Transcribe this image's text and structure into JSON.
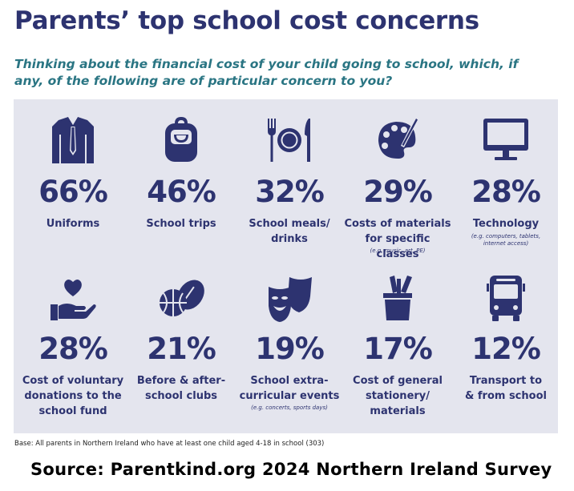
{
  "title": "Parents’ top school cost concerns",
  "question": "Thinking about the financial cost of your child going to school, which, if any, of the following are of particular concern to you?",
  "base": "Base: All parents in Northern Ireland who have at least one child aged 4-18 in school (303)",
  "source": "Source: Parentkind.org  2024 Northern Ireland Survey",
  "colors": {
    "primary": "#2d3370",
    "question": "#2a7583",
    "panel": "#e4e5ee"
  },
  "chart_data": {
    "type": "pictogram",
    "value_unit": "%",
    "items": [
      {
        "icon": "shirt-tie-icon",
        "value": 66,
        "pct": "66%",
        "label1": "Uniforms",
        "label2": "",
        "label3": "",
        "note1": "",
        "note2": ""
      },
      {
        "icon": "backpack-icon",
        "value": 46,
        "pct": "46%",
        "label1": "School trips",
        "label2": "",
        "label3": "",
        "note1": "",
        "note2": ""
      },
      {
        "icon": "plate-cutlery-icon",
        "value": 32,
        "pct": "32%",
        "label1": "School meals/",
        "label2": "drinks",
        "label3": "",
        "note1": "",
        "note2": ""
      },
      {
        "icon": "paint-palette-icon",
        "value": 29,
        "pct": "29%",
        "label1": "Costs of materials",
        "label2": "for specific classes",
        "label3": "",
        "note1": "(e.g. music, art, PE)",
        "note2": ""
      },
      {
        "icon": "computer-monitor-icon",
        "value": 28,
        "pct": "28%",
        "label1": "Technology",
        "label2": "",
        "label3": "",
        "note1": "(e.g. computers, tablets,",
        "note2": "internet access)"
      },
      {
        "icon": "heart-hand-icon",
        "value": 28,
        "pct": "28%",
        "label1": "Cost of voluntary",
        "label2": "donations to the",
        "label3": "school fund",
        "note1": "",
        "note2": ""
      },
      {
        "icon": "sports-balls-icon",
        "value": 21,
        "pct": "21%",
        "label1": "Before & after-",
        "label2": "school clubs",
        "label3": "",
        "note1": "",
        "note2": ""
      },
      {
        "icon": "theatre-masks-icon",
        "value": 19,
        "pct": "19%",
        "label1": "School extra-",
        "label2": "curricular events",
        "label3": "",
        "note1": "(e.g. concerts, sports days)",
        "note2": ""
      },
      {
        "icon": "pencil-cup-icon",
        "value": 17,
        "pct": "17%",
        "label1": "Cost of general",
        "label2": "stationery/",
        "label3": "materials",
        "note1": "",
        "note2": ""
      },
      {
        "icon": "bus-icon",
        "value": 12,
        "pct": "12%",
        "label1": "Transport to",
        "label2": "& from school",
        "label3": "",
        "note1": "",
        "note2": ""
      }
    ]
  }
}
